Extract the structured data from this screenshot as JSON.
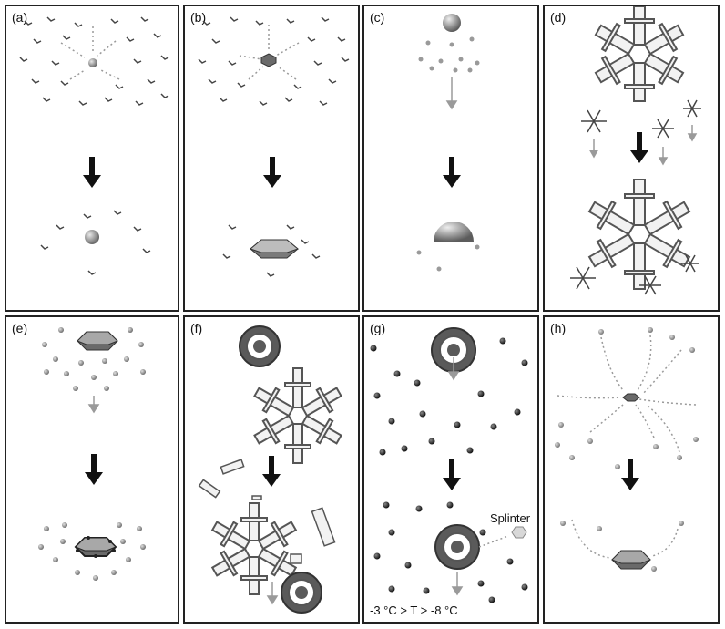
{
  "panels": [
    {
      "id": "a",
      "label": "(a)"
    },
    {
      "id": "b",
      "label": "(b)"
    },
    {
      "id": "c",
      "label": "(c)"
    },
    {
      "id": "d",
      "label": "(d)"
    },
    {
      "id": "e",
      "label": "(e)"
    },
    {
      "id": "f",
      "label": "(f)"
    },
    {
      "id": "g",
      "label": "(g)"
    },
    {
      "id": "h",
      "label": "(h)"
    }
  ],
  "annotations": {
    "splinter": "Splinter",
    "temperature_range": "-3 °C > T > -8 °C"
  },
  "colors": {
    "border": "#222222",
    "arrow_main": "#111111",
    "arrow_flow": "#9a9a9a",
    "droplet": "#8c8c8c",
    "crystal": "#7a7a7a",
    "graupel_dark": "#555555"
  }
}
